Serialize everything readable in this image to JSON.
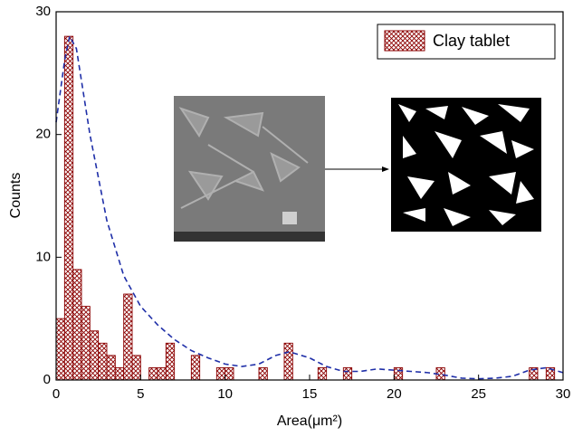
{
  "chart_data": {
    "type": "histogram",
    "xlabel": "Area(μm²)",
    "ylabel": "Counts",
    "bins": [
      0,
      0.5,
      1,
      1.5,
      2,
      2.5,
      3,
      3.5,
      4,
      4.5,
      5,
      5.5,
      6,
      6.5,
      7,
      7.5,
      8,
      8.5,
      9,
      9.5,
      10,
      10.5,
      11,
      11.5,
      12,
      12.5,
      13,
      13.5,
      14,
      14.5,
      15,
      15.5,
      16,
      16.5,
      17,
      17.5,
      18,
      18.5,
      19,
      19.5,
      20,
      20.5,
      21,
      21.5,
      22,
      22.5,
      23,
      23.5,
      24,
      24.5,
      25,
      25.5,
      26,
      26.5,
      27,
      27.5,
      28,
      28.5,
      29,
      29.5,
      30
    ],
    "series": [
      {
        "name": "Clay tablet",
        "color": "#8b0000",
        "values": [
          5,
          28,
          9,
          6,
          4,
          3,
          2,
          1,
          7,
          2,
          0,
          1,
          1,
          3,
          0,
          0,
          2,
          0,
          0,
          1,
          1,
          0,
          0,
          0,
          1,
          0,
          0,
          3,
          0,
          0,
          0,
          1,
          0,
          0,
          1,
          0,
          0,
          0,
          0,
          0,
          1,
          0,
          0,
          0,
          0,
          1,
          0,
          0,
          0,
          0,
          0,
          0,
          0,
          0,
          0,
          0,
          1,
          0,
          1,
          0
        ]
      }
    ],
    "fit": {
      "color": "#1f2fa8",
      "x": [
        0,
        0.5,
        0.8,
        1.2,
        2,
        3,
        4,
        5,
        6,
        7,
        8,
        9,
        10,
        11,
        12,
        13,
        13.8,
        15,
        16,
        17,
        18,
        19,
        20,
        21,
        22,
        23,
        24,
        25,
        26,
        27,
        28,
        29,
        30
      ],
      "values": [
        21,
        26,
        28,
        27,
        20,
        13,
        8.5,
        6,
        4.5,
        3.3,
        2.4,
        1.8,
        1.3,
        1.1,
        1.3,
        2,
        2.3,
        1.8,
        1.1,
        0.7,
        0.7,
        0.9,
        0.8,
        0.7,
        0.6,
        0.4,
        0.15,
        0.1,
        0.15,
        0.3,
        0.8,
        1,
        0.6
      ]
    },
    "xlim": [
      0,
      30
    ],
    "ylim": [
      0,
      30
    ],
    "xticks": [
      0,
      5,
      10,
      15,
      20,
      25,
      30
    ],
    "yticks": [
      0,
      10,
      20,
      30
    ],
    "legend": "top-right"
  }
}
